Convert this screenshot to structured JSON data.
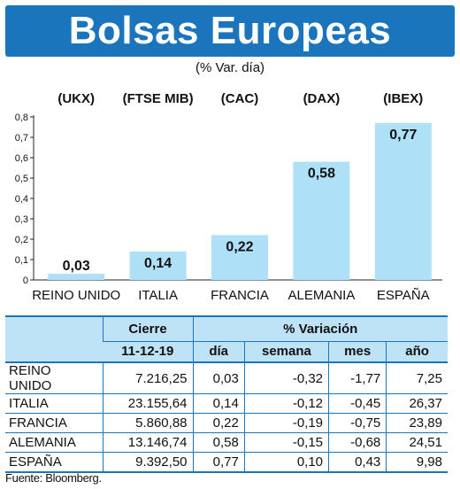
{
  "title": "Bolsas Europeas",
  "subtitle": "(% Var. día)",
  "chart_data": {
    "type": "bar",
    "indices": [
      "(UKX)",
      "(FTSE MIB)",
      "(CAC)",
      "(DAX)",
      "(IBEX)"
    ],
    "categories": [
      "REINO UNIDO",
      "ITALIA",
      "FRANCIA",
      "ALEMANIA",
      "ESPAÑA"
    ],
    "values": [
      0.03,
      0.14,
      0.22,
      0.58,
      0.77
    ],
    "value_labels": [
      "0,03",
      "0,14",
      "0,22",
      "0,58",
      "0,77"
    ],
    "ylim": [
      0,
      0.8
    ],
    "yticks": [
      0,
      0.1,
      0.2,
      0.3,
      0.4,
      0.5,
      0.6,
      0.7,
      0.8
    ],
    "ytick_labels": [
      "0",
      "0,1",
      "0,2",
      "0,3",
      "0,4",
      "0,5",
      "0,6",
      "0,7",
      "0,8"
    ],
    "bar_color": "#aee0f7",
    "grid": false
  },
  "table": {
    "header_cierre": "Cierre",
    "header_date": "11-12-19",
    "header_variacion": "% Variación",
    "col_dia": "día",
    "col_semana": "semana",
    "col_mes": "mes",
    "col_ano": "año",
    "rows": [
      {
        "country": "REINO UNIDO",
        "cierre": "7.216,25",
        "dia": "0,03",
        "semana": "-0,32",
        "mes": "-1,77",
        "ano": "7,25"
      },
      {
        "country": "ITALIA",
        "cierre": "23.155,64",
        "dia": "0,14",
        "semana": "-0,12",
        "mes": "-0,45",
        "ano": "26,37"
      },
      {
        "country": "FRANCIA",
        "cierre": "5.860,88",
        "dia": "0,22",
        "semana": "-0,19",
        "mes": "-0,75",
        "ano": "23,89"
      },
      {
        "country": "ALEMANIA",
        "cierre": "13.146,74",
        "dia": "0,58",
        "semana": "-0,15",
        "mes": "-0,68",
        "ano": "24,51"
      },
      {
        "country": "ESPAÑA",
        "cierre": "9.392,50",
        "dia": "0,77",
        "semana": "0,10",
        "mes": "0,43",
        "ano": "9,98"
      }
    ]
  },
  "source": "Fuente: Bloomberg.",
  "colors": {
    "brand_blue": "#1b75bc",
    "header_fill": "#bfe3f6"
  }
}
